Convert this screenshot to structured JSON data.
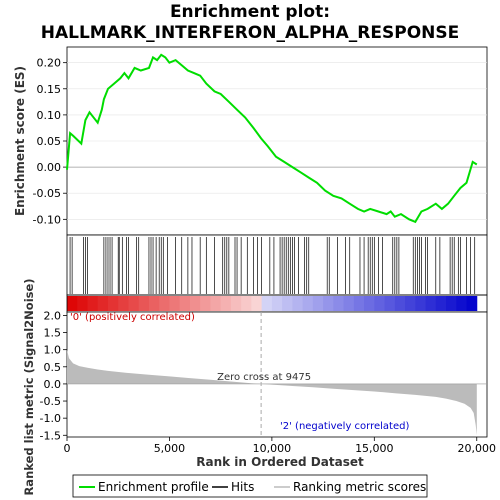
{
  "chart_data": {
    "type": "line",
    "title_line1": "Enrichment plot:",
    "title_line2": "HALLMARK_INTERFERON_ALPHA_RESPONSE",
    "top_panel": {
      "ylabel": "Enrichment score (ES)",
      "ylim": [
        -0.13,
        0.23
      ],
      "yticks": [
        "-0.10",
        "-0.05",
        "0.00",
        "0.05",
        "0.10",
        "0.15",
        "0.20"
      ],
      "ytick_values": [
        -0.1,
        -0.05,
        0.0,
        0.05,
        0.1,
        0.15,
        0.2
      ],
      "profile_color": "#00dd00",
      "es_profile": {
        "x": [
          0,
          150,
          300,
          700,
          900,
          1100,
          1500,
          1700,
          1800,
          2000,
          2300,
          2600,
          2800,
          3000,
          3300,
          3600,
          4000,
          4200,
          4400,
          4600,
          4800,
          5000,
          5300,
          5600,
          5900,
          6200,
          6500,
          6800,
          7200,
          7500,
          7900,
          8300,
          8700,
          9100,
          9475,
          9800,
          10200,
          10600,
          11000,
          11400,
          11800,
          12200,
          12600,
          13000,
          13400,
          13800,
          14200,
          14500,
          14800,
          15200,
          15600,
          15800,
          16000,
          16300,
          16700,
          17000,
          17300,
          17600,
          18000,
          18300,
          18600,
          18900,
          19200,
          19500,
          19800,
          20000
        ],
        "y": [
          -0.005,
          0.065,
          0.06,
          0.045,
          0.09,
          0.105,
          0.085,
          0.11,
          0.13,
          0.15,
          0.16,
          0.17,
          0.18,
          0.17,
          0.19,
          0.185,
          0.19,
          0.21,
          0.205,
          0.215,
          0.21,
          0.2,
          0.205,
          0.195,
          0.185,
          0.18,
          0.175,
          0.16,
          0.145,
          0.14,
          0.125,
          0.11,
          0.095,
          0.075,
          0.055,
          0.04,
          0.02,
          0.01,
          0.0,
          -0.01,
          -0.02,
          -0.03,
          -0.045,
          -0.055,
          -0.06,
          -0.07,
          -0.08,
          -0.085,
          -0.08,
          -0.085,
          -0.09,
          -0.085,
          -0.095,
          -0.09,
          -0.1,
          -0.105,
          -0.085,
          -0.08,
          -0.07,
          -0.08,
          -0.07,
          -0.055,
          -0.04,
          -0.03,
          0.01,
          0.005
        ]
      }
    },
    "hits_panel": {
      "hit_positions": [
        150,
        250,
        800,
        900,
        1000,
        1800,
        1900,
        2000,
        2100,
        2200,
        2500,
        2550,
        2700,
        2900,
        3000,
        3400,
        3500,
        4000,
        4100,
        4200,
        4350,
        4500,
        4600,
        4700,
        4900,
        5300,
        5600,
        5900,
        6100,
        6500,
        6800,
        7200,
        7600,
        7700,
        7800,
        7900,
        8200,
        8300,
        8500,
        8800,
        9100,
        9300,
        9500,
        9900,
        10100,
        10400,
        10500,
        10600,
        10700,
        10800,
        10900,
        11000,
        11100,
        11300,
        11600,
        11700,
        11800,
        12700,
        12800,
        13200,
        13600,
        13800,
        14300,
        14500,
        14700,
        14800,
        14900,
        15000,
        15200,
        15400,
        15900,
        16000,
        16100,
        16200,
        16900,
        17000,
        17100,
        17200,
        17300,
        17500,
        17600,
        18000,
        18200,
        18700,
        18800,
        18900,
        19100,
        19200,
        19500,
        19700,
        19900
      ]
    },
    "metric_panel": {
      "ylabel": "Ranked list metric (Signal2Noise)",
      "xlabel": "Rank in Ordered Dataset",
      "ylim": [
        -1.55,
        2.1
      ],
      "yticks": [
        "-1.5",
        "-1.0",
        "-0.5",
        "0.0",
        "0.5",
        "1.0",
        "1.5",
        "2.0"
      ],
      "ytick_values": [
        -1.5,
        -1.0,
        -0.5,
        0.0,
        0.5,
        1.0,
        1.5,
        2.0
      ],
      "xticks": [
        "0",
        "5,000",
        "10,000",
        "15,000",
        "20,000"
      ],
      "xtick_values": [
        0,
        5000,
        10000,
        15000,
        20000
      ],
      "xlim": [
        0,
        20500
      ],
      "n_genes": 20000,
      "metric_curve": {
        "x": [
          0,
          100,
          300,
          600,
          1000,
          1500,
          2000,
          3000,
          4000,
          5000,
          6000,
          7000,
          8000,
          9000,
          9475,
          10000,
          11000,
          12000,
          13000,
          14000,
          15000,
          16000,
          17000,
          18000,
          18500,
          19000,
          19400,
          19700,
          19850,
          19950,
          20000
        ],
        "y": [
          1.0,
          0.75,
          0.6,
          0.52,
          0.47,
          0.42,
          0.38,
          0.32,
          0.27,
          0.22,
          0.17,
          0.12,
          0.07,
          0.02,
          0.0,
          -0.02,
          -0.06,
          -0.1,
          -0.14,
          -0.18,
          -0.22,
          -0.27,
          -0.32,
          -0.38,
          -0.43,
          -0.5,
          -0.58,
          -0.7,
          -0.85,
          -1.2,
          -1.5
        ]
      },
      "zero_cross_label": "Zero cross at 9475",
      "zero_cross": 9475,
      "pos_label": "'0' (positively correlated)",
      "neg_label": "'2' (negatively correlated)",
      "pos_color": "#dd0000",
      "neg_color": "#0000cc"
    },
    "legend": [
      {
        "label": "Enrichment profile",
        "color": "#00dd00"
      },
      {
        "label": "Hits",
        "color": "#000000"
      },
      {
        "label": "Ranking metric scores",
        "color": "#bbbbbb"
      }
    ]
  }
}
